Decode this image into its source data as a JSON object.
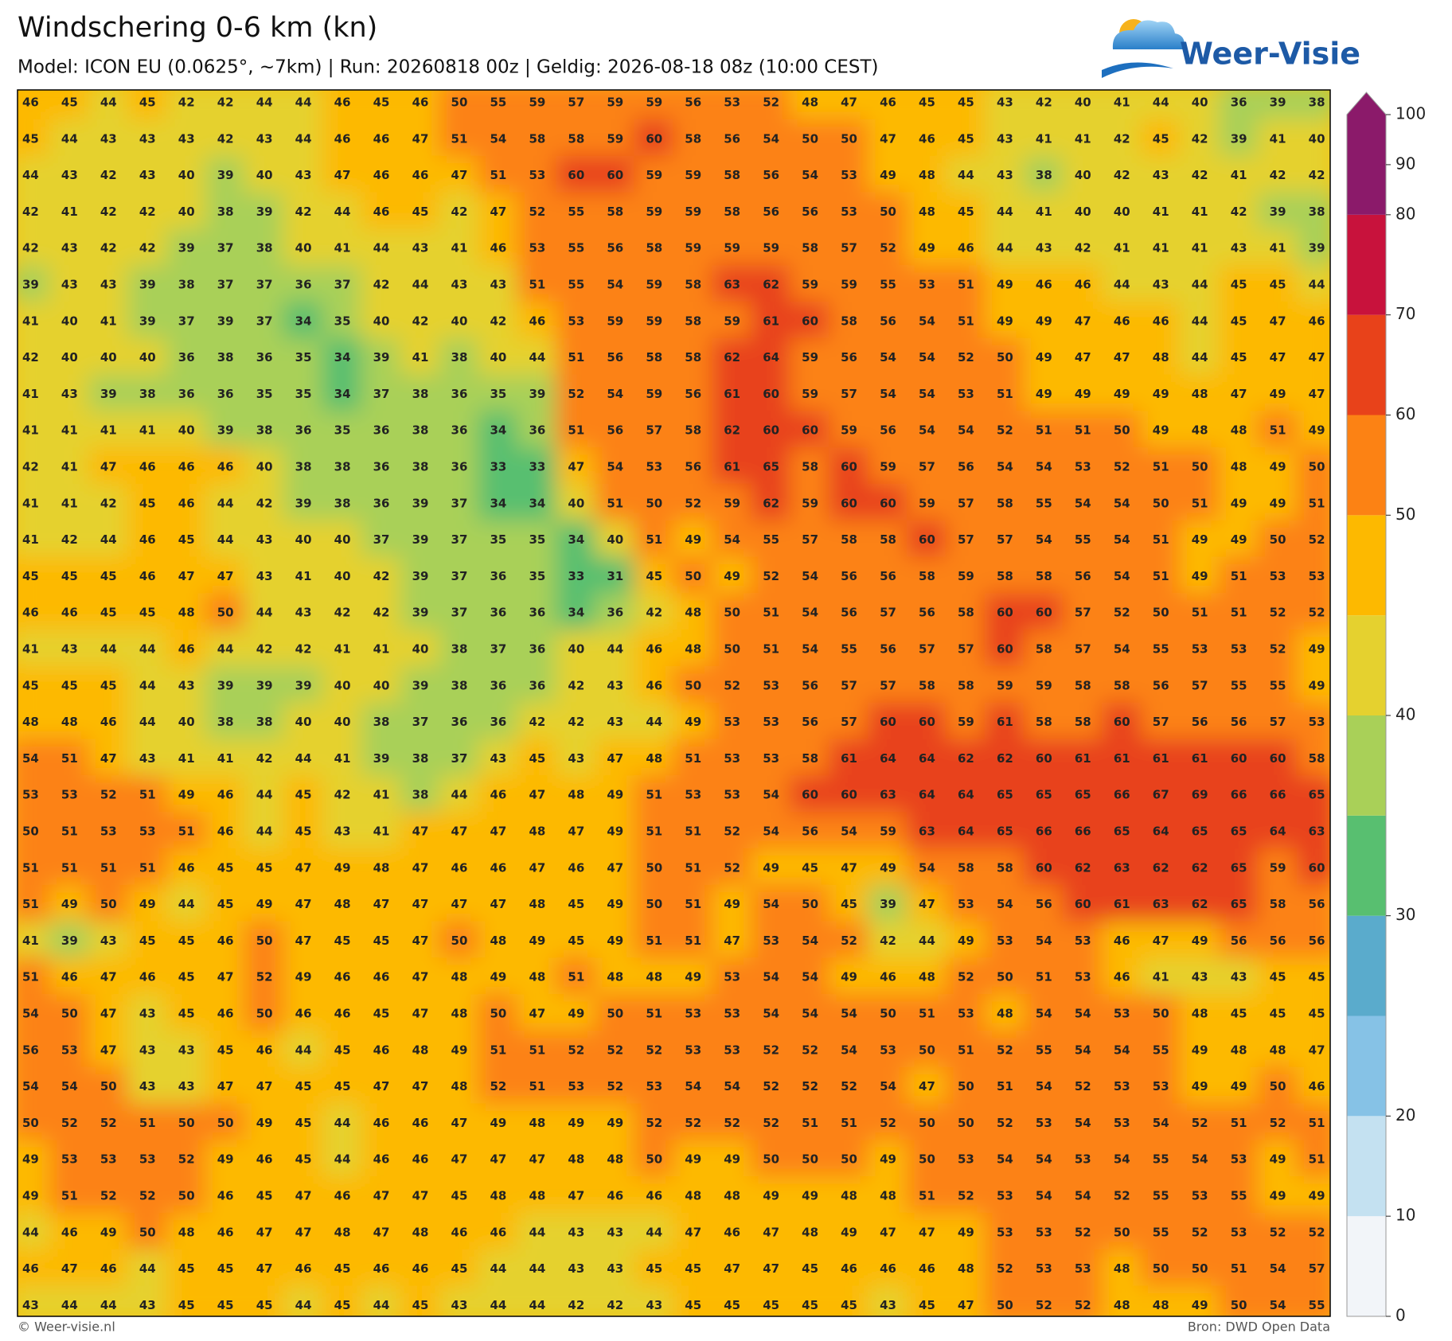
{
  "header": {
    "title": "Windschering 0-6 km (kn)",
    "subtitle": "Model: ICON EU (0.0625°, ~7km)  |  Run: 20260818 00z  |  Geldig: 2026-08-18 08z (10:00 CEST)",
    "logo": "Weer-Visie"
  },
  "footer": {
    "left": "© Weer-visie.nl",
    "right": "Bron: DWD Open Data"
  },
  "colorbar": {
    "levels": [
      0,
      10,
      20,
      25,
      30,
      35,
      40,
      45,
      50,
      60,
      70,
      80,
      100
    ],
    "colors": [
      "#f2f5f9",
      "#c4e1f1",
      "#86c2e6",
      "#5aabcc",
      "#58bf70",
      "#a9d058",
      "#e5d12f",
      "#fdb900",
      "#fc8214",
      "#e8421a",
      "#c8123c",
      "#8b1a6a"
    ],
    "ticks": [
      0,
      10,
      20,
      30,
      40,
      50,
      60,
      70,
      80,
      90,
      100
    ]
  },
  "grid": [
    [
      46,
      45,
      44,
      45,
      42,
      42,
      44,
      44,
      46,
      45,
      46,
      50,
      55,
      59,
      57,
      59,
      59,
      56,
      53,
      52,
      48,
      47,
      46,
      45,
      45,
      43,
      42,
      40,
      41,
      44,
      40,
      36,
      39,
      38
    ],
    [
      45,
      44,
      43,
      43,
      43,
      42,
      43,
      44,
      46,
      46,
      47,
      51,
      54,
      58,
      58,
      59,
      60,
      58,
      56,
      54,
      50,
      50,
      47,
      46,
      45,
      43,
      41,
      41,
      42,
      45,
      42,
      39,
      41,
      40
    ],
    [
      44,
      43,
      42,
      43,
      40,
      39,
      40,
      43,
      47,
      46,
      46,
      47,
      51,
      53,
      60,
      60,
      59,
      59,
      58,
      56,
      54,
      53,
      49,
      48,
      44,
      43,
      38,
      40,
      42,
      43,
      42,
      41,
      42,
      42
    ],
    [
      42,
      41,
      42,
      42,
      40,
      38,
      39,
      42,
      44,
      46,
      45,
      42,
      47,
      52,
      55,
      58,
      59,
      59,
      58,
      56,
      56,
      53,
      50,
      48,
      45,
      44,
      41,
      40,
      40,
      41,
      41,
      42,
      39,
      38
    ],
    [
      42,
      43,
      42,
      42,
      39,
      37,
      38,
      40,
      41,
      44,
      43,
      41,
      46,
      53,
      55,
      56,
      58,
      59,
      59,
      59,
      58,
      57,
      52,
      49,
      46,
      44,
      43,
      42,
      41,
      41,
      41,
      43,
      41,
      39
    ],
    [
      39,
      43,
      43,
      39,
      38,
      37,
      37,
      36,
      37,
      42,
      44,
      43,
      43,
      51,
      55,
      54,
      59,
      58,
      63,
      62,
      59,
      59,
      55,
      53,
      51,
      49,
      46,
      46,
      44,
      43,
      44,
      45,
      45,
      44
    ],
    [
      41,
      40,
      41,
      39,
      37,
      39,
      37,
      34,
      35,
      40,
      42,
      40,
      42,
      46,
      53,
      59,
      59,
      58,
      59,
      61,
      60,
      58,
      56,
      54,
      51,
      49,
      49,
      47,
      46,
      46,
      44,
      45,
      47,
      46
    ],
    [
      42,
      40,
      40,
      40,
      36,
      38,
      36,
      35,
      34,
      39,
      41,
      38,
      40,
      44,
      51,
      56,
      58,
      58,
      62,
      64,
      59,
      56,
      54,
      54,
      52,
      50,
      49,
      47,
      47,
      48,
      44,
      45,
      47,
      47
    ],
    [
      41,
      43,
      39,
      38,
      36,
      36,
      35,
      35,
      34,
      37,
      38,
      36,
      35,
      39,
      52,
      54,
      59,
      56,
      61,
      60,
      59,
      57,
      54,
      54,
      53,
      51,
      49,
      49,
      49,
      49,
      48,
      47,
      49,
      47
    ],
    [
      41,
      41,
      41,
      41,
      40,
      39,
      38,
      36,
      35,
      36,
      38,
      36,
      34,
      36,
      51,
      56,
      57,
      58,
      62,
      60,
      60,
      59,
      56,
      54,
      54,
      52,
      51,
      51,
      50,
      49,
      48,
      48,
      51,
      49
    ],
    [
      42,
      41,
      47,
      46,
      46,
      46,
      40,
      38,
      38,
      36,
      38,
      36,
      33,
      33,
      47,
      54,
      53,
      56,
      61,
      65,
      58,
      60,
      59,
      57,
      56,
      54,
      54,
      53,
      52,
      51,
      50,
      48,
      49,
      50
    ],
    [
      41,
      41,
      42,
      45,
      46,
      44,
      42,
      39,
      38,
      36,
      39,
      37,
      34,
      34,
      40,
      51,
      50,
      52,
      59,
      62,
      59,
      60,
      60,
      59,
      57,
      58,
      55,
      54,
      54,
      50,
      51,
      49,
      49,
      51
    ],
    [
      41,
      42,
      44,
      46,
      45,
      44,
      43,
      40,
      40,
      37,
      39,
      37,
      35,
      35,
      34,
      40,
      51,
      49,
      54,
      55,
      57,
      58,
      58,
      60,
      57,
      57,
      54,
      55,
      54,
      51,
      49,
      49,
      50,
      52
    ],
    [
      45,
      45,
      45,
      46,
      47,
      47,
      43,
      41,
      40,
      42,
      39,
      37,
      36,
      35,
      33,
      31,
      45,
      50,
      49,
      52,
      54,
      56,
      56,
      58,
      59,
      58,
      58,
      56,
      54,
      51,
      49,
      51,
      53,
      53
    ],
    [
      46,
      46,
      45,
      45,
      48,
      50,
      44,
      43,
      42,
      42,
      39,
      37,
      36,
      36,
      34,
      36,
      42,
      48,
      50,
      51,
      54,
      56,
      57,
      56,
      58,
      60,
      60,
      57,
      52,
      50,
      51,
      51,
      52,
      52
    ],
    [
      41,
      43,
      44,
      44,
      46,
      44,
      42,
      42,
      41,
      41,
      40,
      38,
      37,
      36,
      40,
      44,
      46,
      48,
      50,
      51,
      54,
      55,
      56,
      57,
      57,
      60,
      58,
      57,
      54,
      55,
      53,
      53,
      52,
      49
    ],
    [
      45,
      45,
      45,
      44,
      43,
      39,
      39,
      39,
      40,
      40,
      39,
      38,
      36,
      36,
      42,
      43,
      46,
      50,
      52,
      53,
      56,
      57,
      57,
      58,
      58,
      59,
      59,
      58,
      58,
      56,
      57,
      55,
      55,
      49
    ],
    [
      48,
      48,
      46,
      44,
      40,
      38,
      38,
      40,
      40,
      38,
      37,
      36,
      36,
      42,
      42,
      43,
      44,
      49,
      53,
      53,
      56,
      57,
      60,
      60,
      59,
      61,
      58,
      58,
      60,
      57,
      56,
      56,
      57,
      53
    ],
    [
      54,
      51,
      47,
      43,
      41,
      41,
      42,
      44,
      41,
      39,
      38,
      37,
      43,
      45,
      43,
      47,
      48,
      51,
      53,
      53,
      58,
      61,
      64,
      64,
      62,
      62,
      60,
      61,
      61,
      61,
      61,
      60,
      60,
      58
    ],
    [
      53,
      53,
      52,
      51,
      49,
      46,
      44,
      45,
      42,
      41,
      38,
      44,
      46,
      47,
      48,
      49,
      51,
      53,
      53,
      54,
      60,
      60,
      63,
      64,
      64,
      65,
      65,
      65,
      66,
      67,
      69,
      66,
      66,
      65
    ],
    [
      50,
      51,
      53,
      53,
      51,
      46,
      44,
      45,
      43,
      41,
      47,
      47,
      47,
      48,
      47,
      49,
      51,
      51,
      52,
      54,
      56,
      54,
      59,
      63,
      64,
      65,
      66,
      66,
      65,
      64,
      65,
      65,
      64,
      63
    ],
    [
      51,
      51,
      51,
      51,
      46,
      45,
      45,
      47,
      49,
      48,
      47,
      46,
      46,
      47,
      46,
      47,
      50,
      51,
      52,
      49,
      45,
      47,
      49,
      54,
      58,
      58,
      60,
      62,
      63,
      62,
      62,
      65,
      59,
      60
    ],
    [
      51,
      49,
      50,
      49,
      44,
      45,
      49,
      47,
      48,
      47,
      47,
      47,
      47,
      48,
      45,
      49,
      50,
      51,
      49,
      54,
      50,
      45,
      39,
      47,
      53,
      54,
      56,
      60,
      61,
      63,
      62,
      65,
      58,
      56
    ],
    [
      41,
      39,
      43,
      45,
      45,
      46,
      50,
      47,
      45,
      45,
      47,
      50,
      48,
      49,
      45,
      49,
      51,
      51,
      47,
      53,
      54,
      52,
      42,
      44,
      49,
      53,
      54,
      53,
      46,
      47,
      49,
      56,
      56,
      56
    ],
    [
      51,
      46,
      47,
      46,
      45,
      47,
      52,
      49,
      46,
      46,
      47,
      48,
      49,
      48,
      51,
      48,
      48,
      49,
      53,
      54,
      54,
      49,
      46,
      48,
      52,
      50,
      51,
      53,
      46,
      41,
      43,
      43,
      45,
      45
    ],
    [
      54,
      50,
      47,
      43,
      45,
      46,
      50,
      46,
      46,
      45,
      47,
      48,
      50,
      47,
      49,
      50,
      51,
      53,
      53,
      54,
      54,
      54,
      50,
      51,
      53,
      48,
      54,
      54,
      53,
      50,
      48,
      45,
      45,
      45
    ],
    [
      56,
      53,
      47,
      43,
      43,
      45,
      46,
      44,
      45,
      46,
      48,
      49,
      51,
      51,
      52,
      52,
      52,
      53,
      53,
      52,
      52,
      54,
      53,
      50,
      51,
      52,
      55,
      54,
      54,
      55,
      49,
      48,
      48,
      47
    ],
    [
      54,
      54,
      50,
      43,
      43,
      47,
      47,
      45,
      45,
      47,
      47,
      48,
      52,
      51,
      53,
      52,
      53,
      54,
      54,
      52,
      52,
      52,
      54,
      47,
      50,
      51,
      54,
      52,
      53,
      53,
      49,
      49,
      50,
      46
    ],
    [
      50,
      52,
      52,
      51,
      50,
      50,
      49,
      45,
      44,
      46,
      46,
      47,
      49,
      48,
      49,
      49,
      52,
      52,
      52,
      52,
      51,
      51,
      52,
      50,
      50,
      52,
      53,
      54,
      53,
      54,
      52,
      51,
      52,
      51
    ],
    [
      49,
      53,
      53,
      53,
      52,
      49,
      46,
      45,
      44,
      46,
      46,
      47,
      47,
      47,
      48,
      48,
      50,
      49,
      49,
      50,
      50,
      50,
      49,
      50,
      53,
      54,
      54,
      53,
      54,
      55,
      54,
      53,
      49,
      51
    ],
    [
      49,
      51,
      52,
      52,
      50,
      46,
      45,
      47,
      46,
      47,
      47,
      45,
      48,
      48,
      47,
      46,
      46,
      48,
      48,
      49,
      49,
      48,
      48,
      51,
      52,
      53,
      54,
      54,
      52,
      55,
      53,
      55,
      49,
      49
    ],
    [
      44,
      46,
      49,
      50,
      48,
      46,
      47,
      47,
      48,
      47,
      48,
      46,
      46,
      44,
      43,
      43,
      44,
      47,
      46,
      47,
      48,
      49,
      47,
      47,
      49,
      53,
      53,
      52,
      50,
      55,
      52,
      53,
      52,
      52
    ],
    [
      46,
      47,
      46,
      44,
      45,
      45,
      47,
      46,
      45,
      46,
      46,
      45,
      44,
      44,
      43,
      43,
      45,
      45,
      47,
      47,
      45,
      46,
      46,
      46,
      48,
      52,
      53,
      53,
      48,
      50,
      50,
      51,
      54,
      57
    ],
    [
      43,
      44,
      44,
      43,
      45,
      45,
      45,
      44,
      45,
      44,
      45,
      43,
      44,
      44,
      42,
      42,
      43,
      45,
      45,
      45,
      45,
      45,
      43,
      45,
      47,
      50,
      52,
      52,
      48,
      48,
      49,
      50,
      54,
      55
    ]
  ]
}
